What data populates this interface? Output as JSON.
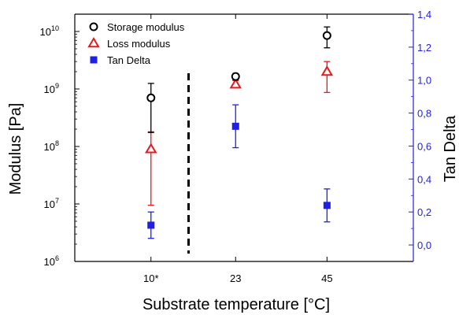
{
  "colors": {
    "storage": "#000000",
    "loss": "#e41a1c",
    "tan": "#1f1fe6",
    "axis": "#000000"
  },
  "chart_data": {
    "type": "scatter",
    "title": "",
    "xlabel": "Substrate temperature [°C]",
    "ylabel": "Modulus [Pa]",
    "y2label": "Tan Delta",
    "categories": [
      "10*",
      "23",
      "45"
    ],
    "y_scale": "log",
    "ylim": [
      1000000,
      20000000000
    ],
    "y_ticks": [
      {
        "value": 1000000,
        "base": "10",
        "exp": "6"
      },
      {
        "value": 10000000,
        "base": "10",
        "exp": "7"
      },
      {
        "value": 100000000,
        "base": "10",
        "exp": "8"
      },
      {
        "value": 1000000000,
        "base": "10",
        "exp": "9"
      },
      {
        "value": 10000000000,
        "base": "10",
        "exp": "10"
      }
    ],
    "y2lim": [
      -0.1,
      1.4
    ],
    "y2_ticks": [
      "0,0",
      "0,2",
      "0,4",
      "0,6",
      "0,8",
      "1,0",
      "1,2",
      "1,4"
    ],
    "y2_tick_values": [
      0,
      0.2,
      0.4,
      0.6,
      0.8,
      1.0,
      1.2,
      1.4
    ],
    "grid": false,
    "legend_position": "top-left",
    "divider_between": [
      "10*",
      "23"
    ],
    "series": [
      {
        "name": "Storage modulus",
        "marker": "circle-open",
        "axis": "left",
        "values": [
          700000000,
          1650000000,
          8500000000
        ],
        "err_low": [
          175000000,
          1450000000,
          5200000000
        ],
        "err_high": [
          1250000000,
          1850000000,
          12000000000
        ]
      },
      {
        "name": "Loss modulus",
        "marker": "triangle-open",
        "axis": "left",
        "values": [
          90000000,
          1200000000,
          2000000000
        ],
        "err_low": [
          9500000,
          1050000000,
          870000000
        ],
        "err_high": [
          180000000,
          1400000000,
          3000000000
        ]
      },
      {
        "name": "Tan Delta",
        "marker": "square-filled",
        "axis": "right",
        "values": [
          0.12,
          0.72,
          0.24
        ],
        "err_low": [
          0.04,
          0.59,
          0.14
        ],
        "err_high": [
          0.2,
          0.85,
          0.34
        ]
      }
    ]
  }
}
